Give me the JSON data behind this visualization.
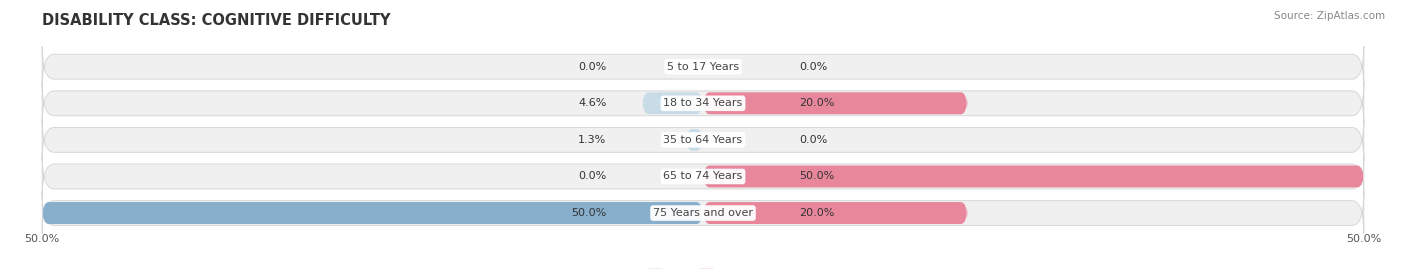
{
  "title": "DISABILITY CLASS: COGNITIVE DIFFICULTY",
  "source": "Source: ZipAtlas.com",
  "categories": [
    "5 to 17 Years",
    "18 to 34 Years",
    "35 to 64 Years",
    "65 to 74 Years",
    "75 Years and over"
  ],
  "male_values": [
    0.0,
    4.6,
    1.3,
    0.0,
    50.0
  ],
  "female_values": [
    0.0,
    20.0,
    0.0,
    50.0,
    20.0
  ],
  "male_color": "#87AECB",
  "female_color": "#E8879C",
  "male_light": "#C8DCE8",
  "female_light": "#F2C0CC",
  "bar_bg_color": "#F0F0F0",
  "bar_bg_outline": "#D8D8D8",
  "max_val": 50.0,
  "title_fontsize": 10.5,
  "label_fontsize": 8.0,
  "tick_fontsize": 8.0,
  "source_fontsize": 7.5
}
